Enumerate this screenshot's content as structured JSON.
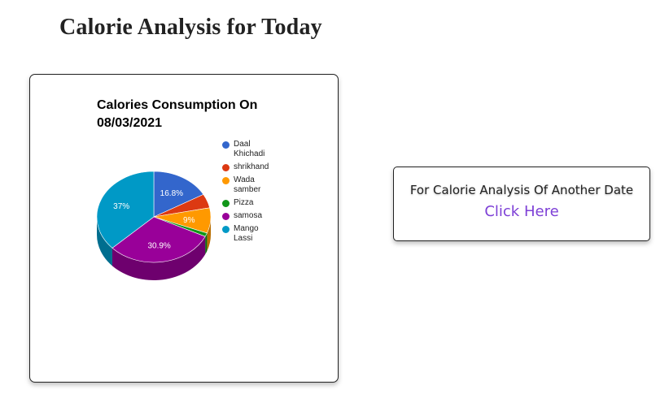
{
  "page": {
    "title": "Calorie Analysis for Today"
  },
  "cta": {
    "text": "For Calorie Analysis Of Another Date",
    "link_label": "Click Here",
    "link_color": "#7d3fd6"
  },
  "chart_data": {
    "type": "pie",
    "style": "3d",
    "title_line1": "Calories Consumption On",
    "title_line2": "08/03/2021",
    "legend_position": "right",
    "slices": [
      {
        "label": "Daal Khichadi",
        "label_lines": [
          "Daal",
          "Khichadi"
        ],
        "value": 16.8,
        "display": "16.8%",
        "color": "#3366cc"
      },
      {
        "label": "shrikhand",
        "label_lines": [
          "shrikhand"
        ],
        "value": 5.0,
        "display": "",
        "color": "#dc3912"
      },
      {
        "label": "Wada samber",
        "label_lines": [
          "Wada",
          "samber"
        ],
        "value": 9.0,
        "display": "9%",
        "color": "#ff9900"
      },
      {
        "label": "Pizza",
        "label_lines": [
          "Pizza"
        ],
        "value": 1.3,
        "display": "",
        "color": "#109618"
      },
      {
        "label": "samosa",
        "label_lines": [
          "samosa"
        ],
        "value": 30.9,
        "display": "30.9%",
        "color": "#990099"
      },
      {
        "label": "Mango Lassi",
        "label_lines": [
          "Mango",
          "Lassi"
        ],
        "value": 37.0,
        "display": "37%",
        "color": "#0099c6"
      }
    ]
  }
}
